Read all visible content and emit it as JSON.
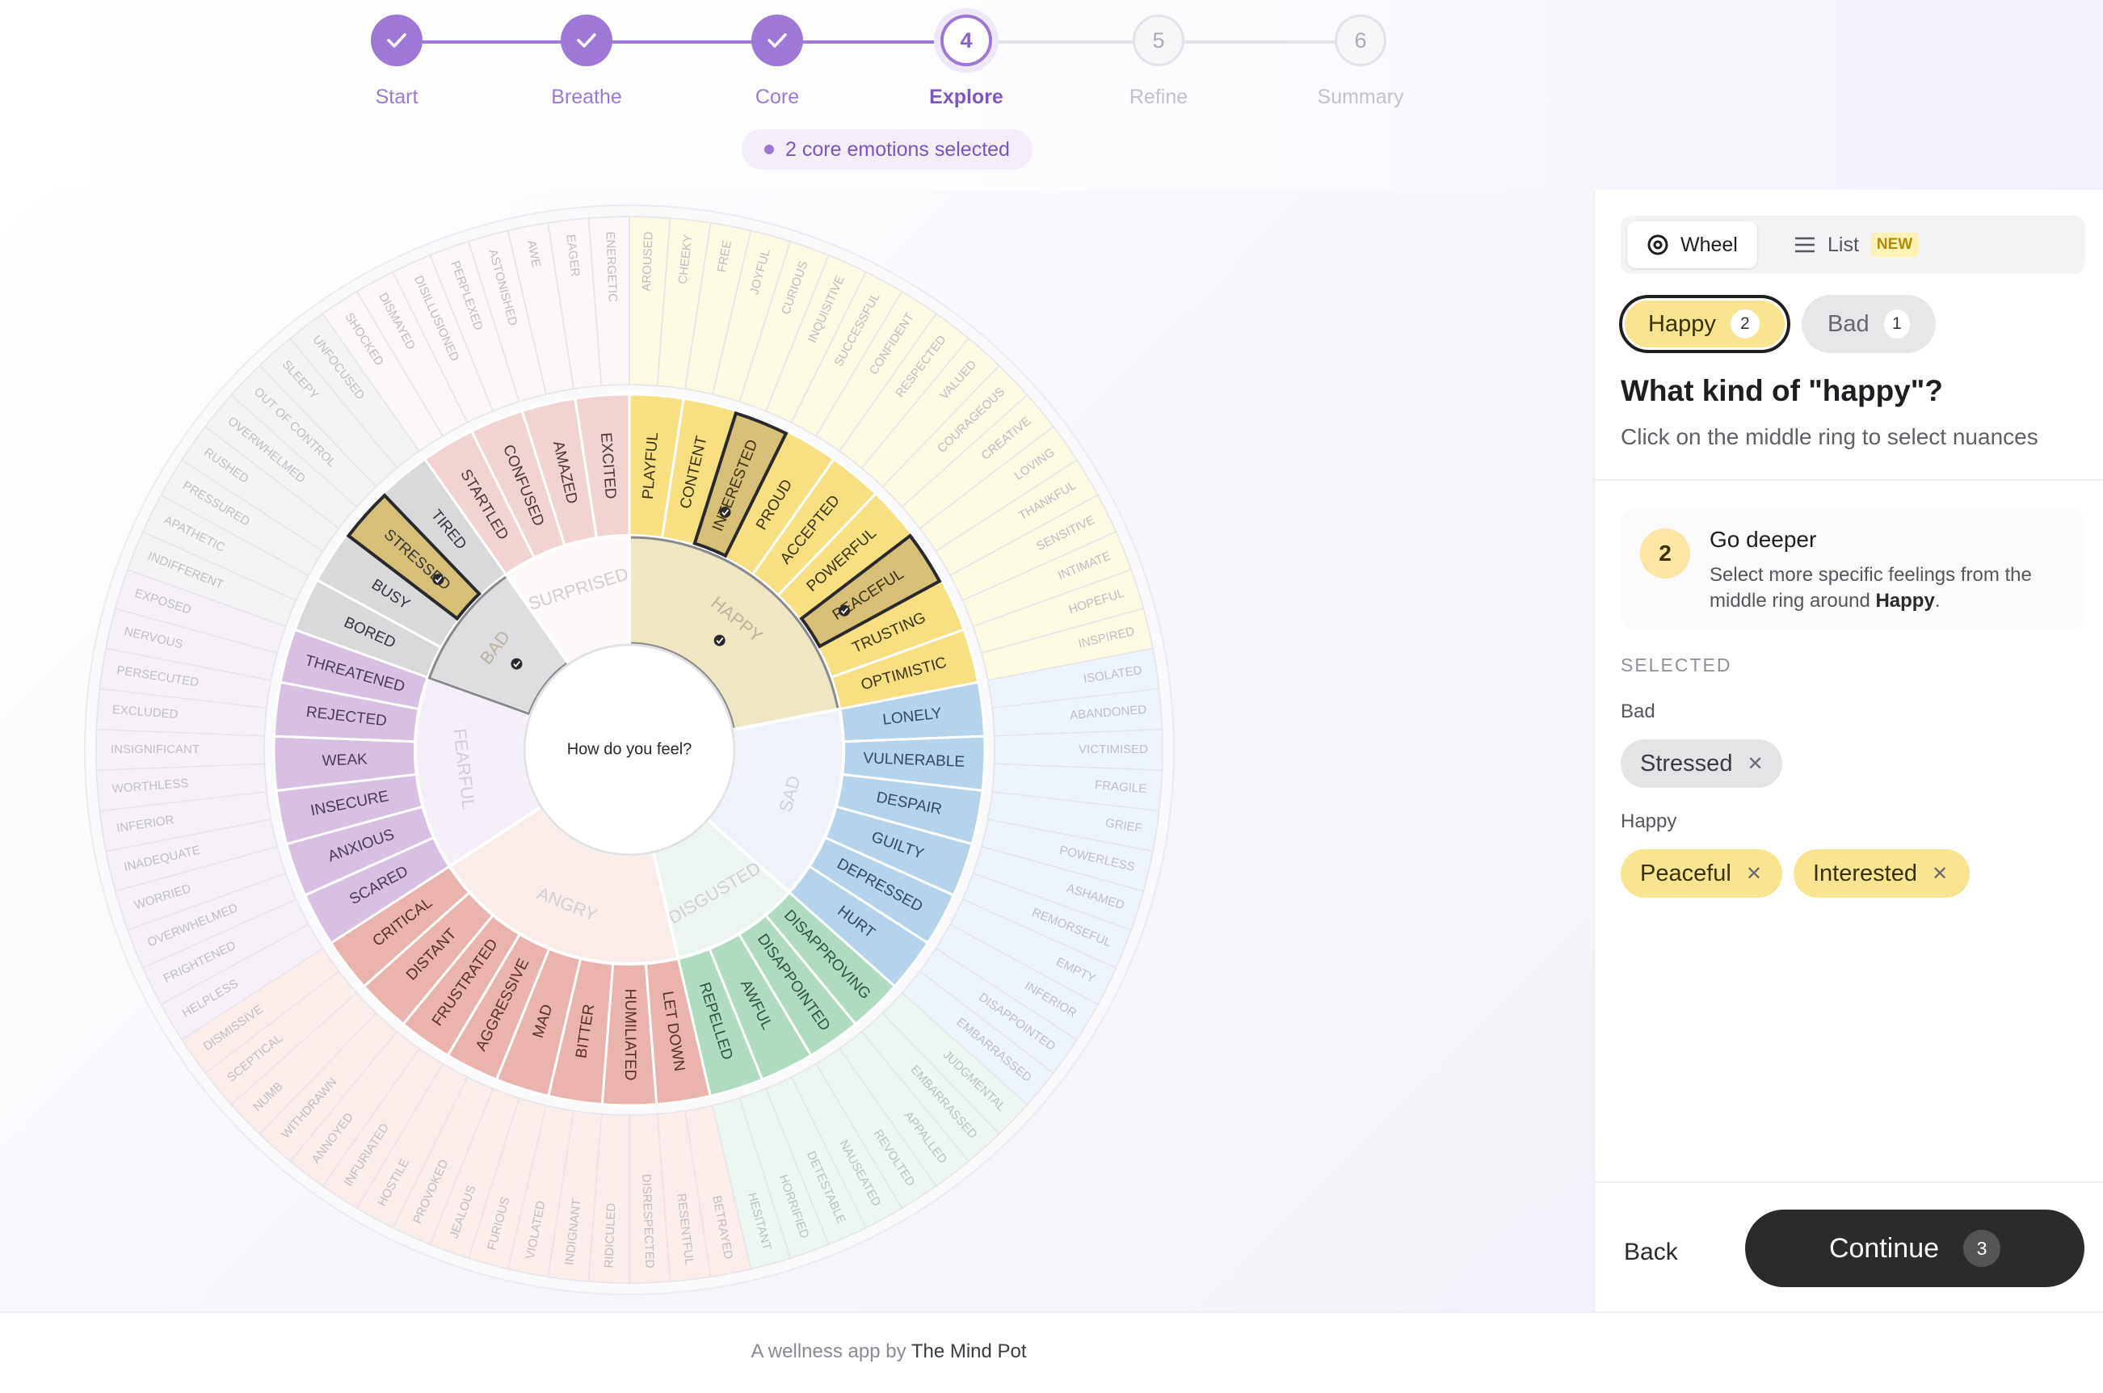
{
  "stepper": {
    "steps": [
      {
        "num": "1",
        "label": "Start",
        "state": "done"
      },
      {
        "num": "2",
        "label": "Breathe",
        "state": "done"
      },
      {
        "num": "3",
        "label": "Core",
        "state": "done"
      },
      {
        "num": "4",
        "label": "Explore",
        "state": "current"
      },
      {
        "num": "5",
        "label": "Refine",
        "state": "todo"
      },
      {
        "num": "6",
        "label": "Summary",
        "state": "todo"
      }
    ],
    "badge": "2 core emotions selected"
  },
  "wheel": {
    "center_label": "How do you feel?",
    "core": [
      {
        "name": "HAPPY",
        "color": "#efe6c3",
        "selected": true,
        "highlight": true,
        "middle": [
          {
            "name": "PLAYFUL",
            "outer": [
              "AROUSED",
              "CHEEKY"
            ]
          },
          {
            "name": "CONTENT",
            "outer": [
              "FREE",
              "JOYFUL"
            ]
          },
          {
            "name": "INTERESTED",
            "selected": true,
            "outer": [
              "CURIOUS",
              "INQUISITIVE"
            ]
          },
          {
            "name": "PROUD",
            "outer": [
              "SUCCESSFUL",
              "CONFIDENT"
            ]
          },
          {
            "name": "ACCEPTED",
            "outer": [
              "RESPECTED",
              "VALUED"
            ]
          },
          {
            "name": "POWERFUL",
            "outer": [
              "COURAGEOUS",
              "CREATIVE"
            ]
          },
          {
            "name": "PEACEFUL",
            "selected": true,
            "outer": [
              "LOVING",
              "THANKFUL"
            ]
          },
          {
            "name": "TRUSTING",
            "outer": [
              "SENSITIVE",
              "INTIMATE"
            ]
          },
          {
            "name": "OPTIMISTIC",
            "outer": [
              "HOPEFUL",
              "INSPIRED"
            ]
          }
        ]
      },
      {
        "name": "SAD",
        "color": "#eef3fa",
        "middle": [
          {
            "name": "LONELY",
            "outer": [
              "ISOLATED",
              "ABANDONED"
            ]
          },
          {
            "name": "VULNERABLE",
            "outer": [
              "VICTIMISED",
              "FRAGILE"
            ]
          },
          {
            "name": "DESPAIR",
            "outer": [
              "GRIEF",
              "POWERLESS"
            ]
          },
          {
            "name": "GUILTY",
            "outer": [
              "ASHAMED",
              "REMORSEFUL"
            ]
          },
          {
            "name": "DEPRESSED",
            "outer": [
              "EMPTY",
              "INFERIOR"
            ]
          },
          {
            "name": "HURT",
            "outer": [
              "DISAPPOINTED",
              "EMBARRASSED"
            ]
          }
        ]
      },
      {
        "name": "DISGUSTED",
        "color": "#ecf5ef",
        "middle": [
          {
            "name": "DISAPPROVING",
            "outer": [
              "JUDGMENTAL",
              "EMBARRASSED"
            ]
          },
          {
            "name": "DISAPPOINTED",
            "outer": [
              "APPALLED",
              "REVOLTED"
            ]
          },
          {
            "name": "AWFUL",
            "outer": [
              "NAUSEATED",
              "DETESTABLE"
            ]
          },
          {
            "name": "REPELLED",
            "outer": [
              "HORRIFIED",
              "HESITANT"
            ]
          }
        ]
      },
      {
        "name": "ANGRY",
        "color": "#f9ece9",
        "middle": [
          {
            "name": "LET DOWN",
            "outer": [
              "BETRAYED",
              "RESENTFUL"
            ]
          },
          {
            "name": "HUMILIATED",
            "outer": [
              "DISRESPECTED",
              "RIDICULED"
            ]
          },
          {
            "name": "BITTER",
            "outer": [
              "INDIGNANT",
              "VIOLATED"
            ]
          },
          {
            "name": "MAD",
            "outer": [
              "FURIOUS",
              "JEALOUS"
            ]
          },
          {
            "name": "AGGRESSIVE",
            "outer": [
              "PROVOKED",
              "HOSTILE"
            ]
          },
          {
            "name": "FRUSTRATED",
            "outer": [
              "INFURIATED",
              "ANNOYED"
            ]
          },
          {
            "name": "DISTANT",
            "outer": [
              "WITHDRAWN",
              "NUMB"
            ]
          },
          {
            "name": "CRITICAL",
            "outer": [
              "SCEPTICAL",
              "DISMISSIVE"
            ]
          }
        ]
      },
      {
        "name": "FEARFUL",
        "color": "#f3eef7",
        "middle": [
          {
            "name": "SCARED",
            "outer": [
              "HELPLESS",
              "FRIGHTENED"
            ]
          },
          {
            "name": "ANXIOUS",
            "outer": [
              "OVERWHELMED",
              "WORRIED"
            ]
          },
          {
            "name": "INSECURE",
            "outer": [
              "INADEQUATE",
              "INFERIOR"
            ]
          },
          {
            "name": "WEAK",
            "outer": [
              "WORTHLESS",
              "INSIGNIFICANT"
            ]
          },
          {
            "name": "REJECTED",
            "outer": [
              "EXCLUDED",
              "PERSECUTED"
            ]
          },
          {
            "name": "THREATENED",
            "outer": [
              "NERVOUS",
              "EXPOSED"
            ]
          }
        ]
      },
      {
        "name": "BAD",
        "color": "#e8e8ea",
        "selected": true,
        "middle": [
          {
            "name": "BORED",
            "outer": [
              "INDIFFERENT",
              "APATHETIC"
            ]
          },
          {
            "name": "BUSY",
            "outer": [
              "PRESSURED",
              "RUSHED"
            ]
          },
          {
            "name": "STRESSED",
            "selected": true,
            "outer": [
              "OVERWHELMED",
              "OUT OF CONTROL"
            ]
          },
          {
            "name": "TIRED",
            "outer": [
              "SLEEPY",
              "UNFOCUSED"
            ]
          }
        ]
      },
      {
        "name": "SURPRISED",
        "color": "#fdf9f8",
        "middle": [
          {
            "name": "STARTLED",
            "outer": [
              "SHOCKED",
              "DISMAYED"
            ]
          },
          {
            "name": "CONFUSED",
            "outer": [
              "DISILLUSIONED",
              "PERPLEXED"
            ]
          },
          {
            "name": "AMAZED",
            "outer": [
              "ASTONISHED",
              "AWE"
            ]
          },
          {
            "name": "EXCITED",
            "outer": [
              "EAGER",
              "ENERGETIC"
            ]
          }
        ]
      }
    ]
  },
  "panel": {
    "view_wheel": "Wheel",
    "view_list": "List",
    "new_tag": "NEW",
    "tab_happy": "Happy",
    "tab_happy_count": "2",
    "tab_bad": "Bad",
    "tab_bad_count": "1",
    "question": "What kind of \"happy\"?",
    "subtitle": "Click on the middle ring to select nuances",
    "deeper_num": "2",
    "deeper_title": "Go deeper",
    "deeper_text_a": "Select more specific feelings from the middle ring around ",
    "deeper_text_b": "Happy",
    "deeper_text_c": ".",
    "selected_heading": "SELECTED",
    "group_bad": "Bad",
    "chip_stressed": "Stressed",
    "group_happy": "Happy",
    "chip_peaceful": "Peaceful",
    "chip_interested": "Interested",
    "back": "Back",
    "continue": "Continue",
    "continue_count": "3"
  },
  "footer": {
    "prefix": "A wellness app by ",
    "brand": "The Mind Pot"
  }
}
